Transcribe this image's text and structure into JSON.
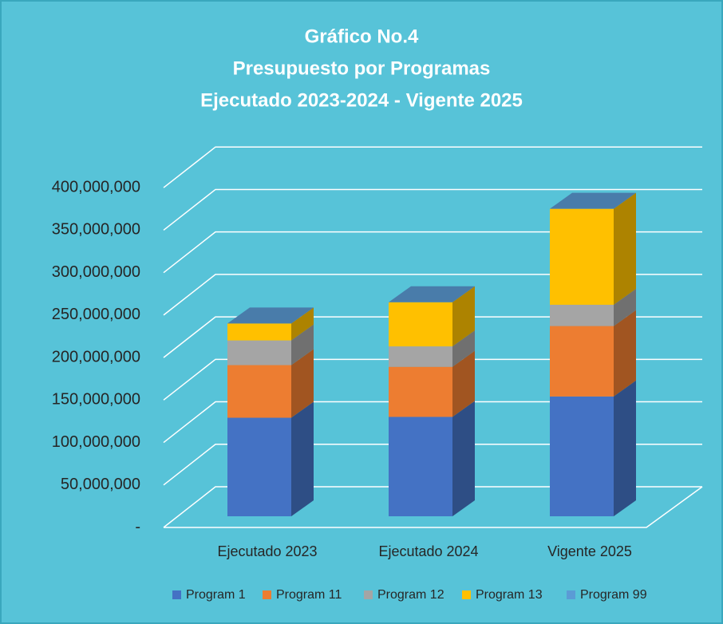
{
  "chart_data": {
    "type": "bar3d_stacked",
    "title": [
      "Gráfico No.4",
      "Presupuesto por Programas",
      "Ejecutado 2023-2024 - Vigente 2025"
    ],
    "categories": [
      "Ejecutado 2023",
      "Ejecutado 2024",
      "Vigente 2025"
    ],
    "series": [
      {
        "name": "Program 1",
        "color": "#4472c4",
        "values": [
          116000000,
          117000000,
          141000000
        ]
      },
      {
        "name": "Program 11",
        "color": "#ed7d31",
        "values": [
          62000000,
          59000000,
          83000000
        ]
      },
      {
        "name": "Program 12",
        "color": "#a5a5a5",
        "values": [
          29000000,
          24000000,
          25000000
        ]
      },
      {
        "name": "Program 13",
        "color": "#ffc000",
        "values": [
          20000000,
          52000000,
          113000000
        ]
      },
      {
        "name": "Program 99",
        "color": "#5b9bd5",
        "values": [
          0,
          0,
          0
        ]
      }
    ],
    "ylim": [
      0,
      450000000
    ],
    "yticks": [
      {
        "value": 0,
        "label": "-"
      },
      {
        "value": 50000000,
        "label": "50,000,000"
      },
      {
        "value": 100000000,
        "label": "100,000,000"
      },
      {
        "value": 150000000,
        "label": "150,000,000"
      },
      {
        "value": 200000000,
        "label": "200,000,000"
      },
      {
        "value": 250000000,
        "label": "250,000,000"
      },
      {
        "value": 300000000,
        "label": "300,000,000"
      },
      {
        "value": 350000000,
        "label": "350,000,000"
      },
      {
        "value": 400000000,
        "label": "400,000,000"
      }
    ],
    "grid": true,
    "legend": "bottom",
    "background": "#57c3d8"
  }
}
